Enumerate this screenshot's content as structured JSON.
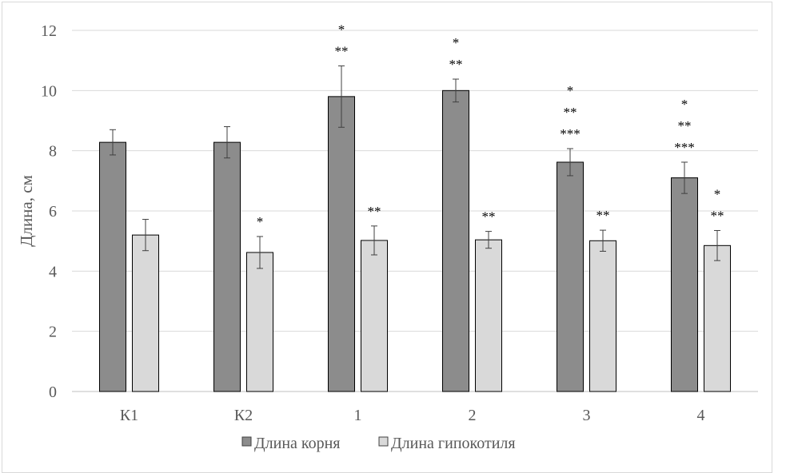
{
  "chart_data": {
    "type": "bar",
    "ylabel": "Длина, см",
    "ylim": [
      0,
      12
    ],
    "yticks": [
      0,
      2,
      4,
      6,
      8,
      10,
      12
    ],
    "grid": true,
    "legend_position": "bottom",
    "categories": [
      "К1",
      "К2",
      "1",
      "2",
      "3",
      "4"
    ],
    "series": [
      {
        "name": "Длина корня",
        "color": "#8c8c8c",
        "values": [
          8.28,
          8.28,
          9.8,
          10.0,
          7.62,
          7.1
        ],
        "errors": [
          0.42,
          0.52,
          1.02,
          0.38,
          0.45,
          0.52
        ],
        "annotations": [
          [],
          [],
          [
            "*",
            "**"
          ],
          [
            "*",
            "**"
          ],
          [
            "*",
            "**",
            "***"
          ],
          [
            "*",
            "**",
            "***"
          ]
        ]
      },
      {
        "name": "Длина гипокотиля",
        "color": "#d9d9d9",
        "values": [
          5.2,
          4.62,
          5.02,
          5.04,
          5.01,
          4.85
        ],
        "errors": [
          0.52,
          0.53,
          0.48,
          0.28,
          0.35,
          0.5
        ],
        "annotations": [
          [],
          [
            "*"
          ],
          [
            "**"
          ],
          [
            "**"
          ],
          [
            "**"
          ],
          [
            "*",
            "**"
          ]
        ]
      }
    ]
  }
}
